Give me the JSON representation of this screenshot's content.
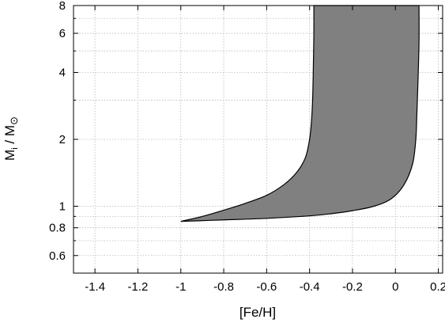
{
  "chart_data": {
    "type": "area",
    "title": "",
    "xlabel": "[Fe/H]",
    "ylabel": {
      "main": "M",
      "main_sub": "i",
      "sep": " / M",
      "sep_sub": "⊙"
    },
    "xlim": [
      -1.5,
      0.22
    ],
    "ylim": [
      0.5,
      8
    ],
    "yscale": "log",
    "grid": true,
    "xticks": [
      -1.4,
      -1.2,
      -1,
      -0.8,
      -0.6,
      -0.4,
      -0.2,
      0,
      0.2
    ],
    "xtick_labels": [
      "-1.4",
      "-1.2",
      "-1",
      "-0.8",
      "-0.6",
      "-0.4",
      "-0.2",
      "0",
      "0.2"
    ],
    "yticks_labeled": [
      0.6,
      0.8,
      1,
      2,
      4,
      6,
      8
    ],
    "ytick_labels": [
      "0.6",
      "0.8",
      "1",
      "2",
      "4",
      "6",
      "8"
    ],
    "yticks_minor": [
      0.5,
      0.7,
      0.9,
      3,
      5,
      7
    ],
    "region_color": "#808080",
    "left_boundary": {
      "x": [
        -1.0,
        -0.9,
        -0.8,
        -0.7,
        -0.6,
        -0.52,
        -0.46,
        -0.42,
        -0.4,
        -0.39,
        -0.385,
        -0.382,
        -0.38,
        -0.38
      ],
      "y": [
        0.855,
        0.9,
        0.96,
        1.03,
        1.12,
        1.25,
        1.42,
        1.65,
        2.0,
        2.5,
        3.2,
        4.5,
        6.0,
        8.0
      ]
    },
    "right_boundary": {
      "x": [
        -1.0,
        -0.8,
        -0.6,
        -0.4,
        -0.3,
        -0.2,
        -0.1,
        -0.02,
        0.04,
        0.08,
        0.095,
        0.1,
        0.105,
        0.11,
        0.11
      ],
      "y": [
        0.855,
        0.868,
        0.882,
        0.905,
        0.925,
        0.955,
        1.0,
        1.08,
        1.25,
        1.55,
        2.0,
        2.6,
        3.6,
        5.5,
        8.0
      ]
    }
  }
}
